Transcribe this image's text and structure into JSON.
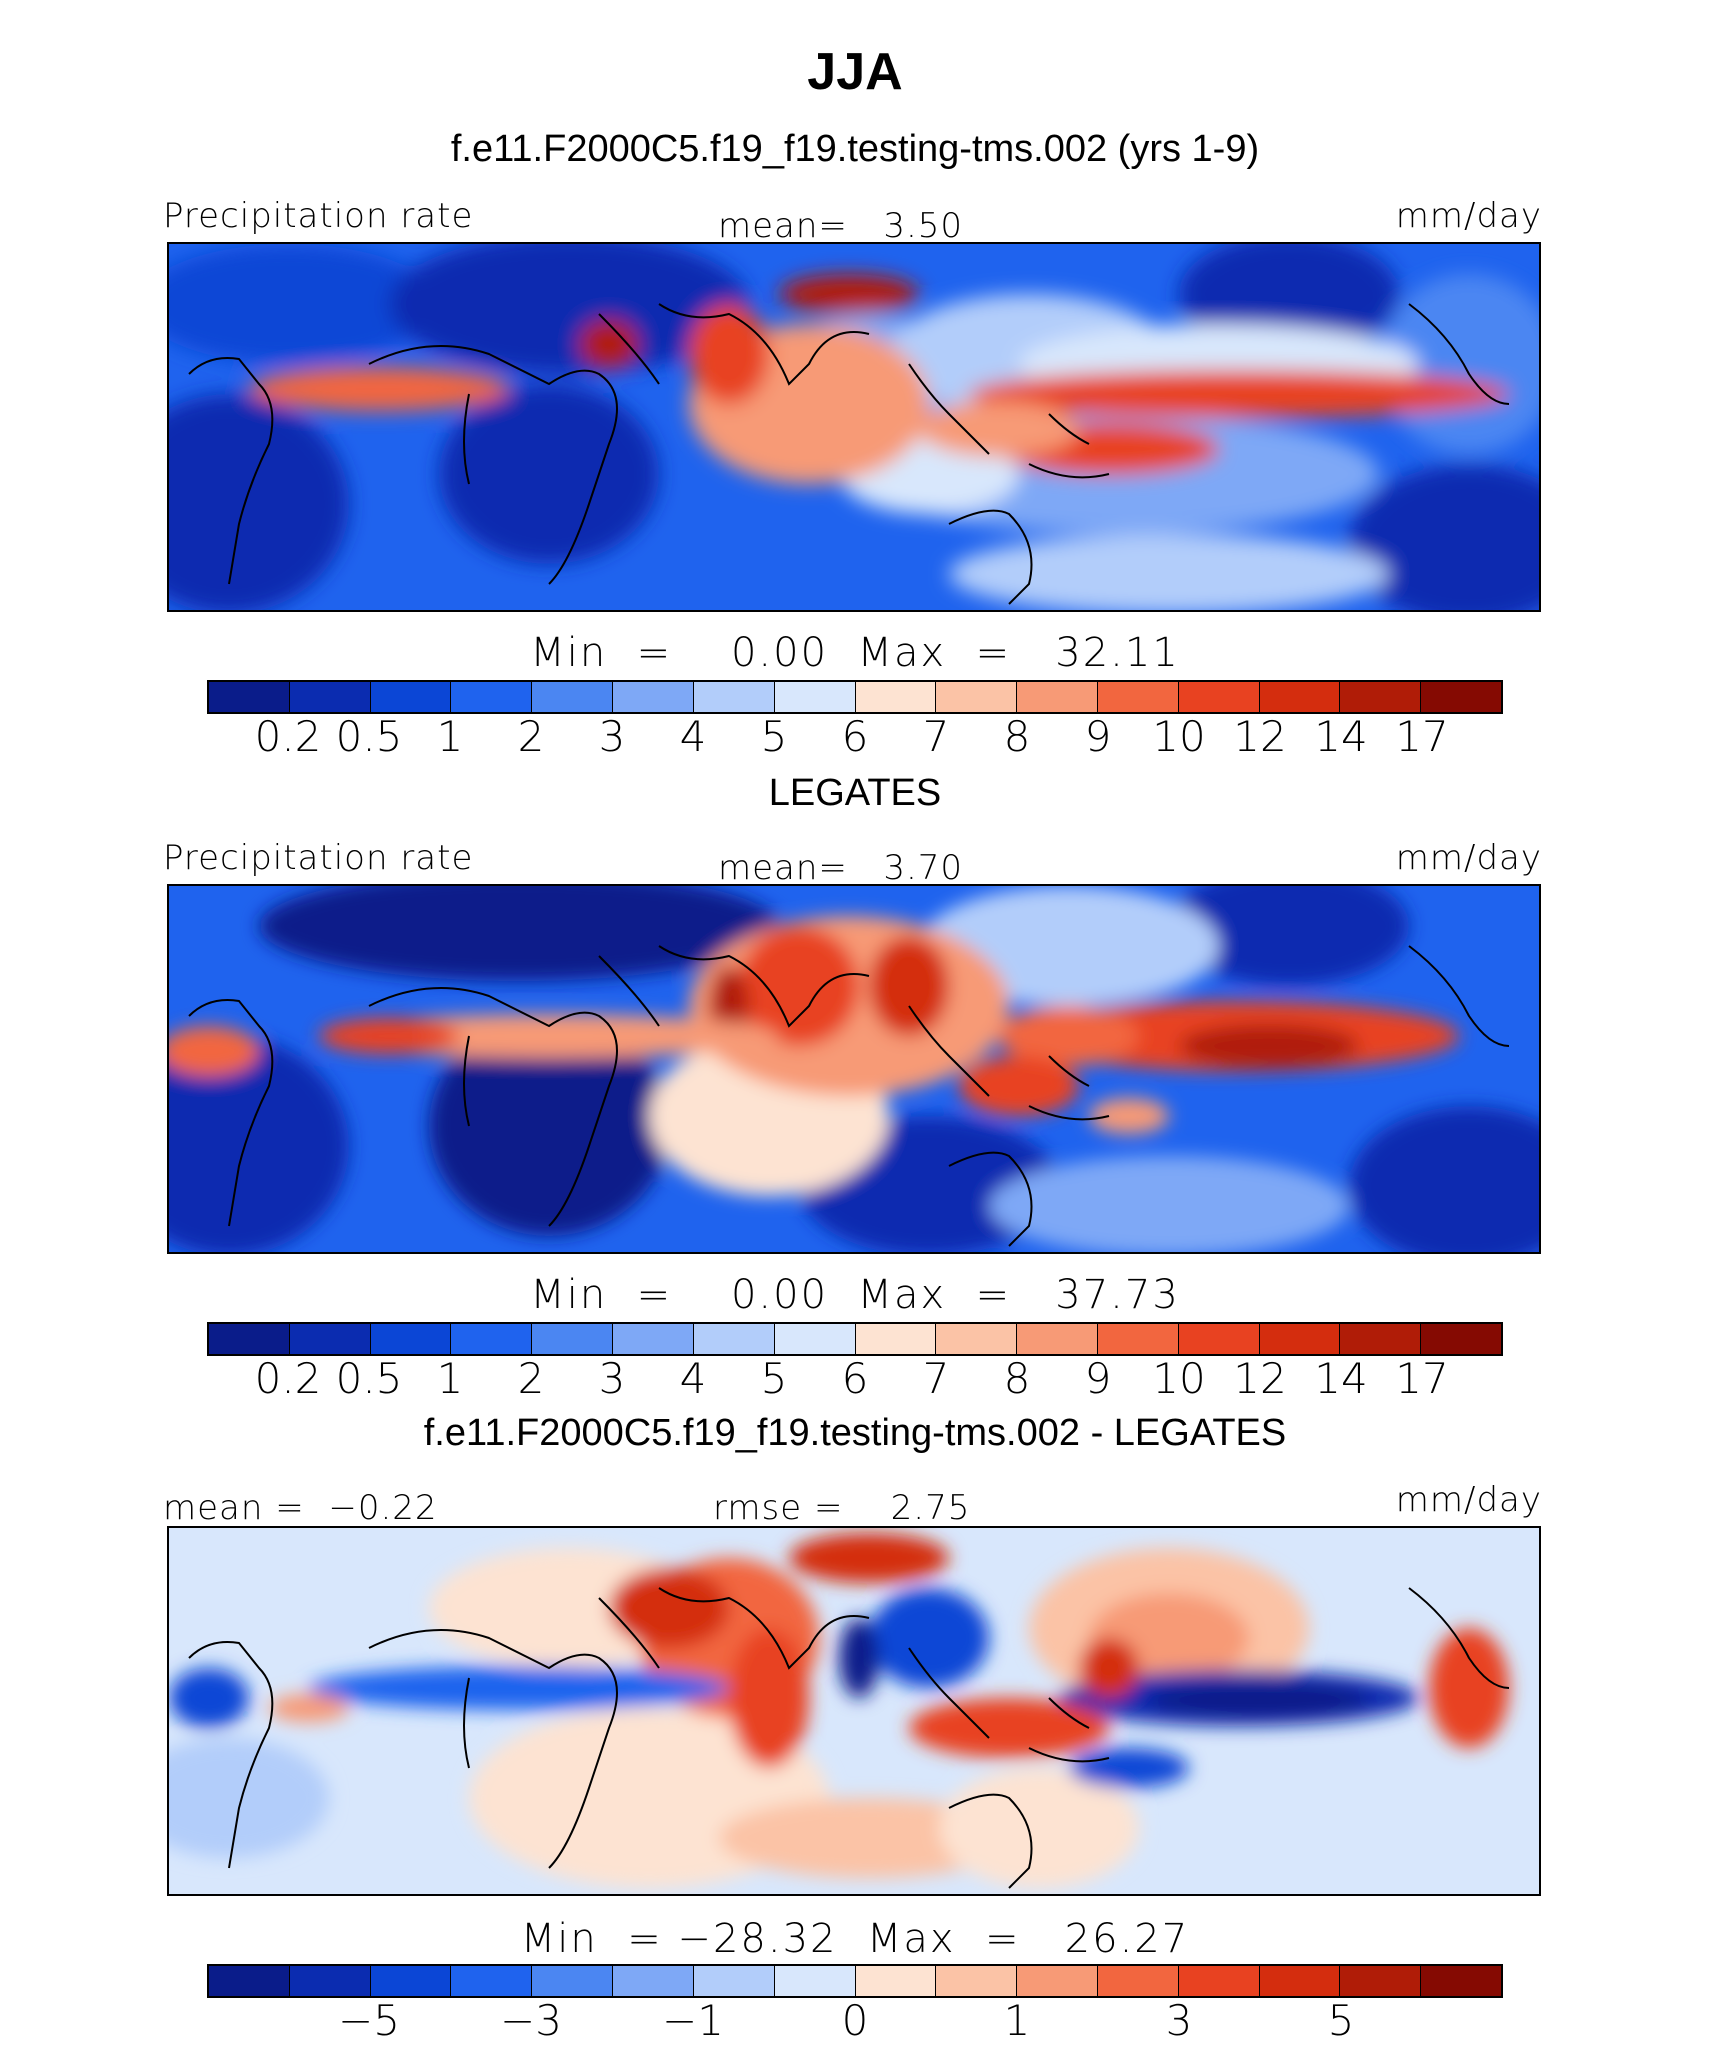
{
  "figure": {
    "title": "JJA"
  },
  "palettes": {
    "abs": [
      "#0a1c8a",
      "#0b2cb0",
      "#0b46d6",
      "#1f63ee",
      "#4b86f2",
      "#7ea8f6",
      "#b2cdfa",
      "#d8e7fc",
      "#fde3d2",
      "#fbc3a6",
      "#f79a76",
      "#f2663f",
      "#e84221",
      "#d42d0e",
      "#b01c07",
      "#850a02"
    ],
    "diff": [
      "#0a1c8a",
      "#0b2cb0",
      "#0b46d6",
      "#1f63ee",
      "#4b86f2",
      "#7ea8f6",
      "#b2cdfa",
      "#d8e7fc",
      "#fde3d2",
      "#fbc3a6",
      "#f79a76",
      "#f2663f",
      "#e84221",
      "#d42d0e",
      "#b01c07",
      "#850a02"
    ],
    "coastline": "#000000"
  },
  "panels": [
    {
      "title": "f.e11.F2000C5.f19_f19.testing-tms.002 (yrs 1-9)",
      "left_label": "Precipitation rate",
      "center_label": "mean=   3.50",
      "right_label": "mm/day",
      "minmax": "Min  =    0.00  Max  =   32.11",
      "colorbar_ticks": [
        "0.2",
        "0.5",
        "1",
        "2",
        "3",
        "4",
        "5",
        "6",
        "7",
        "8",
        "9",
        "10",
        "12",
        "14",
        "17"
      ]
    },
    {
      "title": "LEGATES",
      "left_label": "Precipitation rate",
      "center_label": "mean=   3.70",
      "right_label": "mm/day",
      "minmax": "Min  =    0.00  Max  =   37.73",
      "colorbar_ticks": [
        "0.2",
        "0.5",
        "1",
        "2",
        "3",
        "4",
        "5",
        "6",
        "7",
        "8",
        "9",
        "10",
        "12",
        "14",
        "17"
      ]
    },
    {
      "title": "f.e11.F2000C5.f19_f19.testing-tms.002 - LEGATES",
      "left_label": "mean =  −0.22",
      "center_label": "rmse =    2.75",
      "right_label": "mm/day",
      "minmax": "Min  = −28.32  Max  =   26.27",
      "colorbar_ticks": [
        "−5",
        "−3",
        "−1",
        "0",
        "1",
        "3",
        "5"
      ]
    }
  ]
}
